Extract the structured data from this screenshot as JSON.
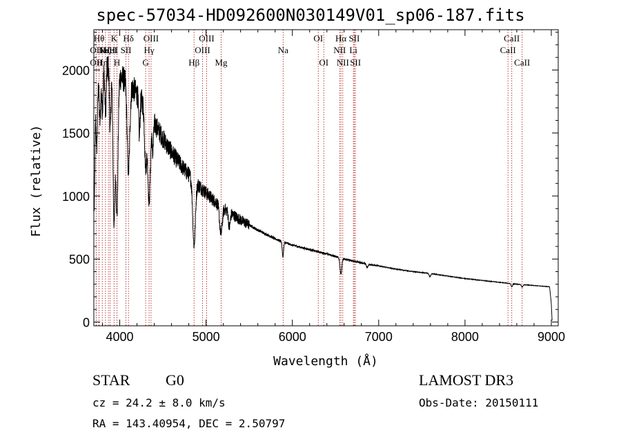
{
  "chart_data": {
    "type": "line",
    "title": "spec-57034-HD092600N030149V01_sp06-187.fits",
    "xlabel": "Wavelength (Å)",
    "ylabel": "Flux (relative)",
    "xlim": [
      3700,
      9080
    ],
    "ylim": [
      -30,
      2320
    ],
    "x_ticks": [
      4000,
      5000,
      6000,
      7000,
      8000,
      9000
    ],
    "x_tick_labels": [
      "4000",
      "5000",
      "6000",
      "7000",
      "8000",
      "9000"
    ],
    "y_ticks": [
      0,
      500,
      1000,
      1500,
      2000
    ],
    "y_tick_labels": [
      "0",
      "500",
      "1000",
      "1500",
      "2000"
    ],
    "continuum": [
      [
        3705,
        900
      ],
      [
        3720,
        1700
      ],
      [
        3750,
        1900
      ],
      [
        3800,
        2000
      ],
      [
        3860,
        2030
      ],
      [
        3920,
        1990
      ],
      [
        3980,
        1960
      ],
      [
        4060,
        1920
      ],
      [
        4150,
        1860
      ],
      [
        4250,
        1760
      ],
      [
        4350,
        1640
      ],
      [
        4450,
        1520
      ],
      [
        4550,
        1400
      ],
      [
        4650,
        1300
      ],
      [
        4750,
        1210
      ],
      [
        4850,
        1130
      ],
      [
        4950,
        1060
      ],
      [
        5050,
        990
      ],
      [
        5150,
        930
      ],
      [
        5250,
        880
      ],
      [
        5400,
        810
      ],
      [
        5600,
        730
      ],
      [
        5800,
        660
      ],
      [
        6000,
        610
      ],
      [
        6200,
        575
      ],
      [
        6400,
        540
      ],
      [
        6600,
        500
      ],
      [
        6800,
        470
      ],
      [
        7000,
        445
      ],
      [
        7200,
        420
      ],
      [
        7400,
        400
      ],
      [
        7600,
        385
      ],
      [
        7800,
        365
      ],
      [
        8000,
        345
      ],
      [
        8200,
        330
      ],
      [
        8400,
        315
      ],
      [
        8600,
        300
      ],
      [
        8800,
        290
      ],
      [
        8980,
        280
      ],
      [
        9000,
        150
      ],
      [
        9010,
        0
      ]
    ],
    "absorption_features": [
      [
        3734,
        400,
        8
      ],
      [
        3771,
        350,
        8
      ],
      [
        3798,
        300,
        8
      ],
      [
        3835,
        350,
        8
      ],
      [
        3889,
        500,
        8
      ],
      [
        3934,
        1200,
        12
      ],
      [
        3968,
        1100,
        12
      ],
      [
        4101,
        700,
        15
      ],
      [
        4227,
        300,
        8
      ],
      [
        4300,
        450,
        12
      ],
      [
        4340,
        700,
        15
      ],
      [
        4383,
        250,
        8
      ],
      [
        4861,
        520,
        15
      ],
      [
        5172,
        220,
        15
      ],
      [
        5270,
        120,
        10
      ],
      [
        5890,
        120,
        8
      ],
      [
        6563,
        130,
        10
      ],
      [
        6867,
        30,
        10
      ],
      [
        7594,
        25,
        10
      ],
      [
        8542,
        25,
        8
      ],
      [
        8662,
        20,
        8
      ]
    ],
    "noise_amplitude": 0.05,
    "line_markers": [
      {
        "wave": 3727,
        "label": "OII",
        "row": 3
      },
      {
        "wave": 3727,
        "label": "OII",
        "row": 2
      },
      {
        "wave": 3760,
        "label": "Hθ",
        "row": 1
      },
      {
        "wave": 3798,
        "label": "Hη",
        "row": 3
      },
      {
        "wave": 3835,
        "label": "Hζ",
        "row": 2
      },
      {
        "wave": 3869,
        "label": "NeIII",
        "row": 2
      },
      {
        "wave": 3889,
        "label": "HeI",
        "row": 2
      },
      {
        "wave": 3934,
        "label": "K",
        "row": 1
      },
      {
        "wave": 3968,
        "label": "H",
        "row": 3
      },
      {
        "wave": 4072,
        "label": "SII",
        "row": 2
      },
      {
        "wave": 4101,
        "label": "Hδ",
        "row": 1
      },
      {
        "wave": 4300,
        "label": "G",
        "row": 3
      },
      {
        "wave": 4340,
        "label": "Hγ",
        "row": 2
      },
      {
        "wave": 4363,
        "label": "OIII",
        "row": 1
      },
      {
        "wave": 4861,
        "label": "Hβ",
        "row": 3
      },
      {
        "wave": 4959,
        "label": "OIII",
        "row": 2
      },
      {
        "wave": 5007,
        "label": "OIII",
        "row": 1
      },
      {
        "wave": 5175,
        "label": "Mg",
        "row": 3
      },
      {
        "wave": 5893,
        "label": "Na",
        "row": 2
      },
      {
        "wave": 6300,
        "label": "OI",
        "row": 1
      },
      {
        "wave": 6364,
        "label": "OI",
        "row": 3
      },
      {
        "wave": 6548,
        "label": "NII",
        "row": 2
      },
      {
        "wave": 6563,
        "label": "Hα",
        "row": 1
      },
      {
        "wave": 6584,
        "label": "NII",
        "row": 3
      },
      {
        "wave": 6707,
        "label": "Li",
        "row": 2
      },
      {
        "wave": 6717,
        "label": "SII",
        "row": 1
      },
      {
        "wave": 6731,
        "label": "SII",
        "row": 3
      },
      {
        "wave": 8498,
        "label": "CaII",
        "row": 2
      },
      {
        "wave": 8542,
        "label": "CaII",
        "row": 1
      },
      {
        "wave": 8662,
        "label": "CaII",
        "row": 3
      }
    ]
  },
  "info": {
    "object_class": "STAR",
    "subclass": "G0",
    "survey": "LAMOST DR3",
    "redshift_line": "cz = 24.2 ± 8.0 km/s",
    "obs_date_line": "Obs-Date: 20150111",
    "coords_line": "RA = 143.40954, DEC =   2.50797"
  }
}
